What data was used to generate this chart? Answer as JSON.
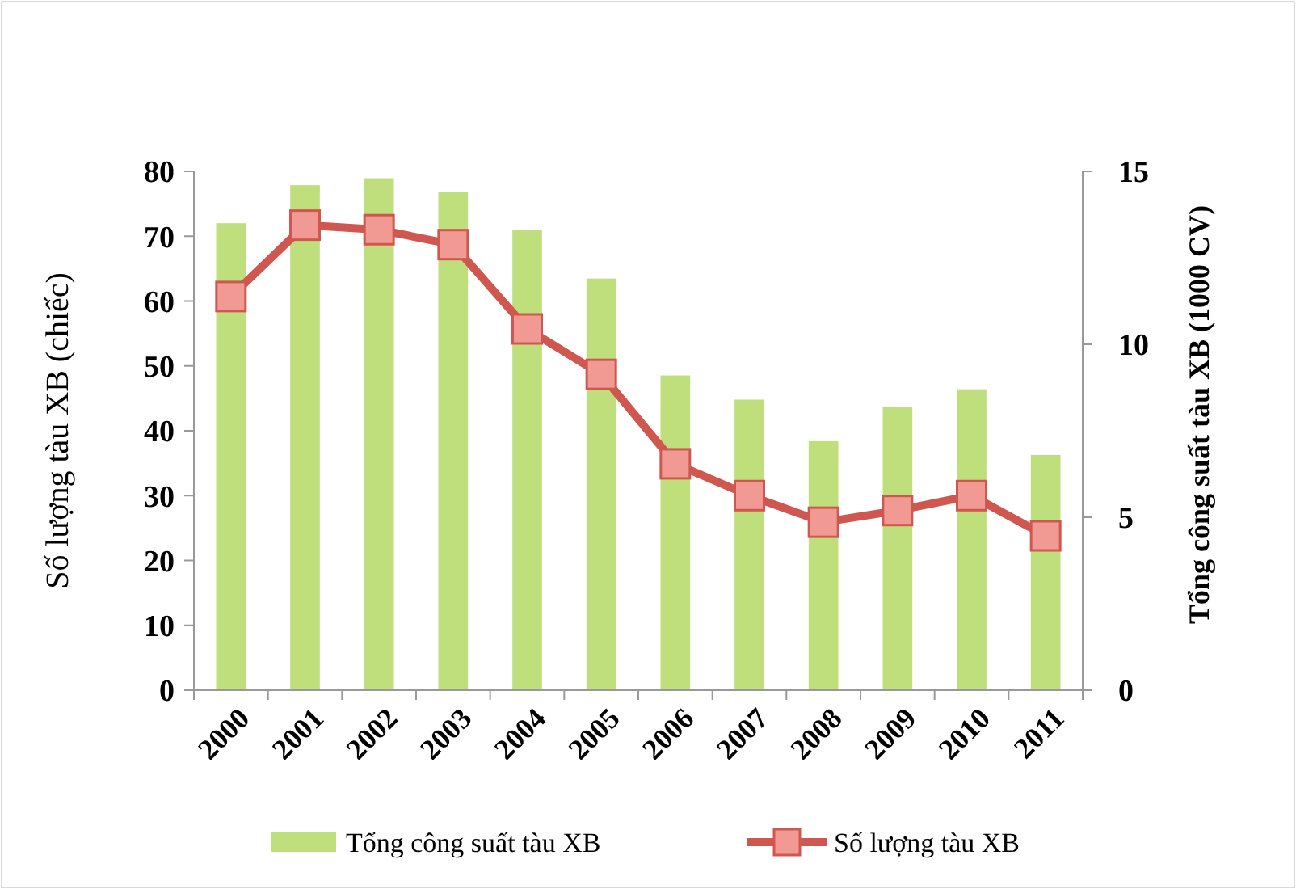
{
  "chart_data": {
    "type": "bar",
    "categories": [
      "2000",
      "2001",
      "2002",
      "2003",
      "2004",
      "2005",
      "2006",
      "2007",
      "2008",
      "2009",
      "2010",
      "2011"
    ],
    "ylabel": "Số lượng tàu XB (chiếc)",
    "y2label": "Tổng công suất tàu XB (1000 CV)",
    "ylim": [
      0,
      80
    ],
    "yticks": [
      0,
      10,
      20,
      30,
      40,
      50,
      60,
      70,
      80
    ],
    "y2lim": [
      0,
      15
    ],
    "y2ticks": [
      0,
      5,
      10,
      15
    ],
    "series": [
      {
        "name": "Tổng công suất tàu XB",
        "axis": "y2",
        "color": "#bedf7c",
        "values": [
          13.5,
          14.6,
          14.8,
          14.4,
          13.3,
          11.9,
          9.1,
          8.4,
          7.2,
          8.2,
          8.7,
          6.8
        ]
      },
      {
        "name": "Số lượng tàu XB",
        "type": "line",
        "axis": "y",
        "color": "#d0574f",
        "marker": "square",
        "values": [
          60.7,
          71.7,
          71,
          68.7,
          55.7,
          48.7,
          34.9,
          30,
          25.9,
          27.7,
          30,
          23.8
        ]
      }
    ],
    "legend": "bottom",
    "grid": false
  }
}
